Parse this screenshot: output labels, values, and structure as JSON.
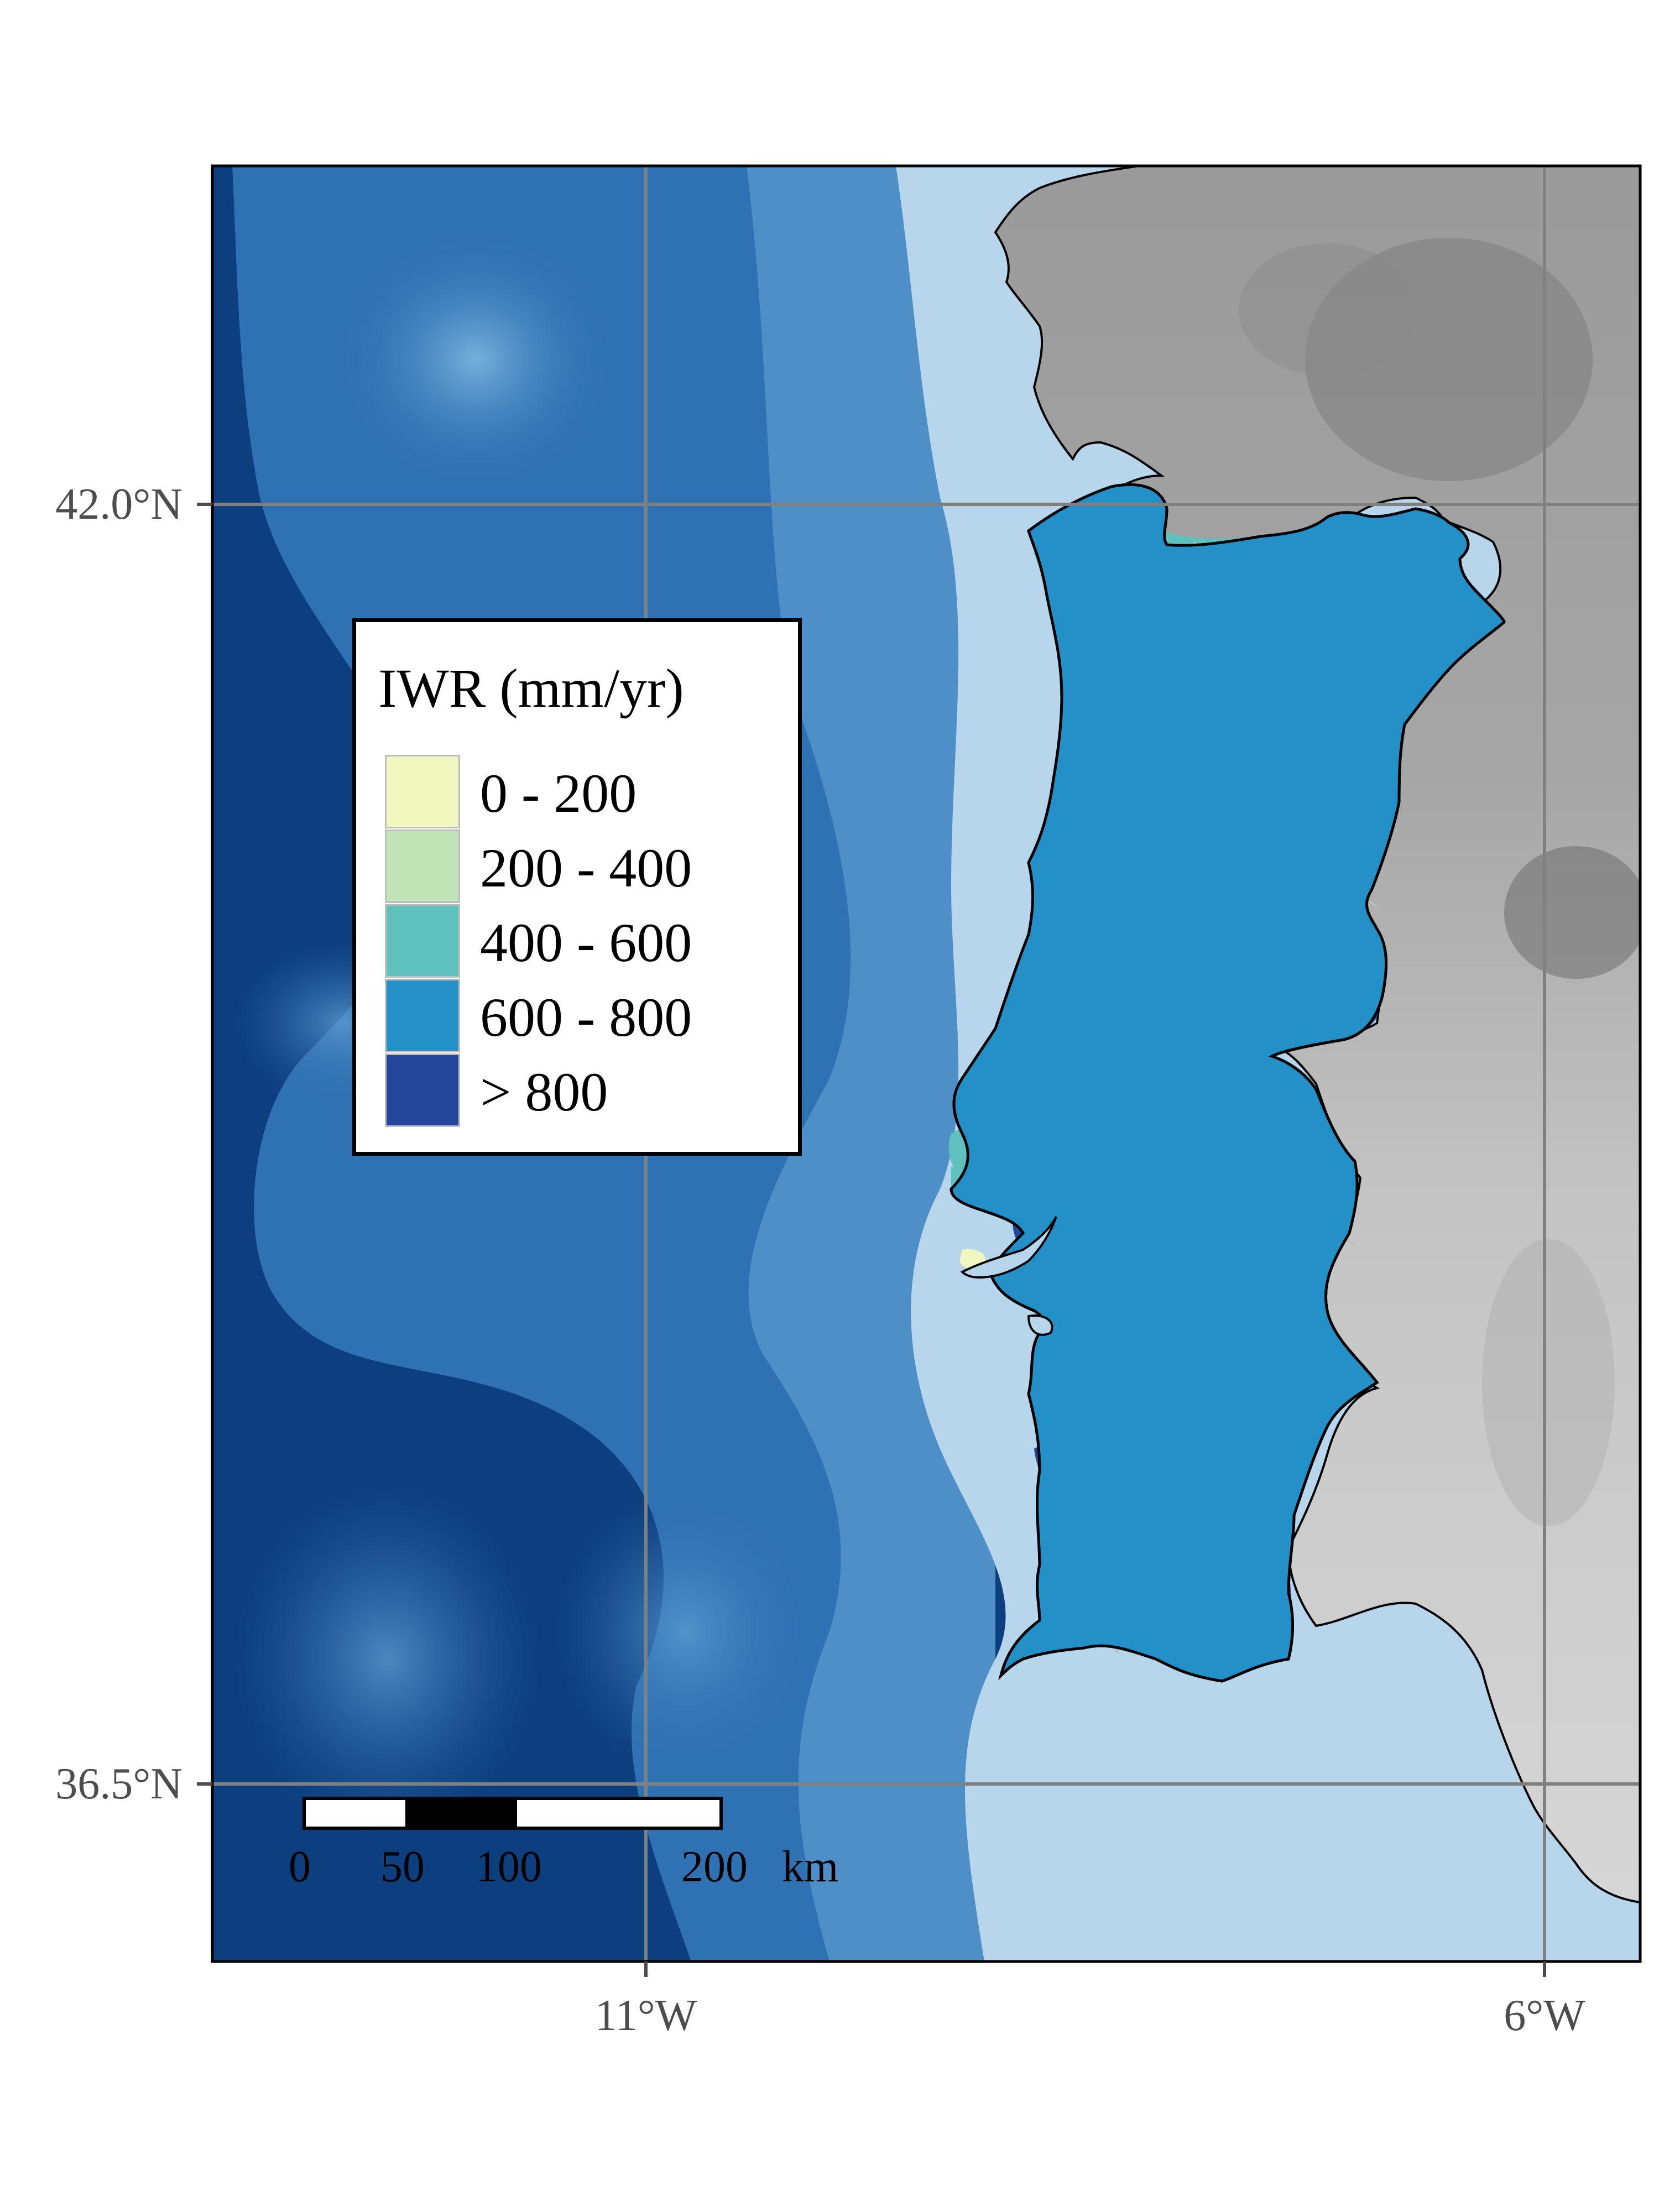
{
  "legend": {
    "title": "IWR (mm/yr)",
    "items": [
      {
        "label": "0 - 200",
        "color": "#f1f8bf"
      },
      {
        "label": "200 - 400",
        "color": "#c0e4b6"
      },
      {
        "label": "400 - 600",
        "color": "#5ec1be"
      },
      {
        "label": "600 - 800",
        "color": "#2390c8"
      },
      {
        "label": "> 800",
        "color": "#23469b"
      }
    ]
  },
  "axes": {
    "lat_ticks": [
      "42.0°N",
      "36.5°N"
    ],
    "lon_ticks": [
      "11°W",
      "6°W"
    ]
  },
  "scale_bar": {
    "ticks": [
      "0",
      "50",
      "100",
      "200"
    ],
    "unit": "km"
  },
  "colors": {
    "deep_ocean": "#0d3e7e",
    "mid_ocean": "#2a6cad",
    "shelf_ocean": "#b7d6ec",
    "land_spain": "#c8c8c8",
    "mountains": "#8c8c8c",
    "graticule": "#808080",
    "district_border": "#bdbdbd"
  }
}
